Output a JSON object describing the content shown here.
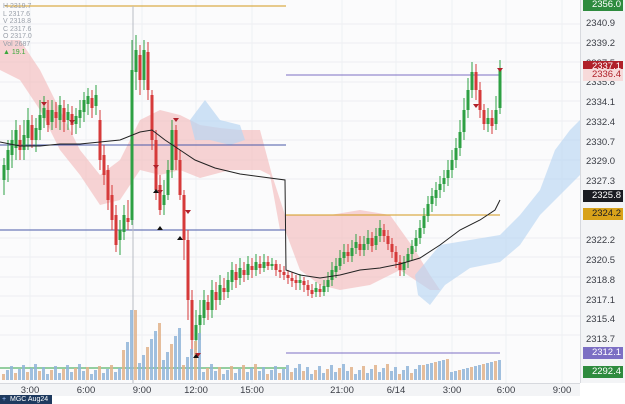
{
  "symbol": "MGC Aug24",
  "price_axis": {
    "labels": [
      "2340.9",
      "2339.2",
      "2337.5",
      "2335.8",
      "2334.1",
      "2332.4",
      "2330.7",
      "2329.0",
      "2327.3",
      "2322.2",
      "2320.5",
      "2318.8",
      "2317.1",
      "2315.4",
      "2313.7"
    ],
    "label_values": [
      2340.9,
      2339.2,
      2337.5,
      2335.8,
      2334.1,
      2332.4,
      2330.7,
      2329.0,
      2327.3,
      2322.2,
      2320.5,
      2318.8,
      2317.1,
      2315.4,
      2313.7
    ]
  },
  "price_tags": [
    {
      "text": "2356.0",
      "value": 2356.0,
      "bg": "#2e8b3e",
      "fg": "#ffffff"
    },
    {
      "text": "2337.1",
      "value": 2337.1,
      "bg": "#b0212a",
      "fg": "#ffffff"
    },
    {
      "text": "2336.4",
      "value": 2336.4,
      "bg": "#f7dada",
      "fg": "#b0212a"
    },
    {
      "text": "2325.8",
      "value": 2325.8,
      "bg": "#1a1c22",
      "fg": "#ffffff"
    },
    {
      "text": "2324.2",
      "value": 2324.2,
      "bg": "#d8a21a",
      "fg": "#1a1c22"
    },
    {
      "text": "2312.1",
      "value": 2312.1,
      "bg": "#7c6fc4",
      "fg": "#ffffff"
    },
    {
      "text": "2292.4",
      "value": 2292.4,
      "bg": "#2e8b3e",
      "fg": "#ffffff"
    }
  ],
  "time_axis": {
    "labels": [
      "3:00",
      "6:00",
      "9:00",
      "12:00",
      "15:00",
      "21:00",
      "6/14",
      "3:00",
      "6:00",
      "9:00"
    ]
  },
  "legend": {
    "lines": [
      "H 2319.7",
      "L 2317.6",
      "V 2318.8",
      "C 2317.6",
      "O 2317.0",
      "Vol 2687"
    ],
    "delta": "19.1"
  },
  "colors": {
    "up": "#2ea043",
    "down": "#d63a3a",
    "cloud_bear": "#f4b8b8",
    "cloud_bull": "#b9d6f2",
    "ma": "#222222",
    "orange": "#d39a1b",
    "blue_line": "#4a5aa8",
    "volume": "#8fb4d8"
  }
}
